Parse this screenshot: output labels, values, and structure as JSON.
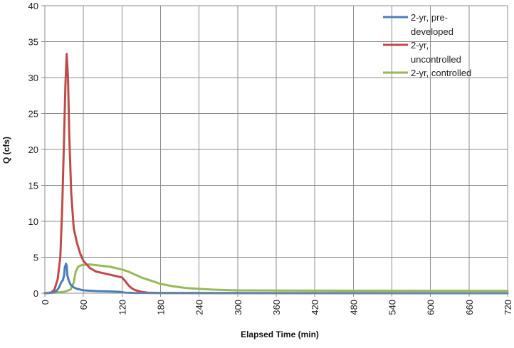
{
  "chart_data": {
    "type": "line",
    "xlabel": "Elapsed Time (min)",
    "ylabel": "Q (cfs)",
    "xlim": [
      0,
      720
    ],
    "ylim": [
      0,
      40
    ],
    "xticks": [
      "0",
      "60",
      "120",
      "180",
      "240",
      "300",
      "360",
      "420",
      "480",
      "540",
      "600",
      "660",
      "720"
    ],
    "yticks": [
      "0",
      "5",
      "10",
      "15",
      "20",
      "25",
      "30",
      "35",
      "40"
    ],
    "grid": true,
    "legend_position": "top-right",
    "series": [
      {
        "name": "2-yr, pre-developed",
        "color": "#4a7ebb",
        "points": [
          [
            0,
            0
          ],
          [
            10,
            0.05
          ],
          [
            18,
            0.3
          ],
          [
            22,
            0.8
          ],
          [
            26,
            1.6
          ],
          [
            28,
            1.8
          ],
          [
            30,
            2.5
          ],
          [
            31,
            3.6
          ],
          [
            33,
            4.1
          ],
          [
            34,
            3.8
          ],
          [
            35,
            2.5
          ],
          [
            37,
            1.8
          ],
          [
            40,
            1.2
          ],
          [
            45,
            0.8
          ],
          [
            50,
            0.6
          ],
          [
            55,
            0.5
          ],
          [
            60,
            0.4
          ],
          [
            80,
            0.3
          ],
          [
            100,
            0.25
          ],
          [
            115,
            0.2
          ],
          [
            120,
            0.15
          ],
          [
            125,
            0.08
          ],
          [
            140,
            0.04
          ],
          [
            180,
            0.02
          ],
          [
            720,
            0
          ]
        ]
      },
      {
        "name": "2-yr, uncontrolled",
        "color": "#be4b48",
        "points": [
          [
            0,
            0
          ],
          [
            10,
            0.1
          ],
          [
            15,
            0.5
          ],
          [
            20,
            2
          ],
          [
            24,
            5
          ],
          [
            27,
            12
          ],
          [
            30,
            22
          ],
          [
            32,
            29
          ],
          [
            34,
            33.3
          ],
          [
            36,
            30
          ],
          [
            38,
            22
          ],
          [
            41,
            14
          ],
          [
            45,
            9
          ],
          [
            50,
            7
          ],
          [
            55,
            5.5
          ],
          [
            60,
            4.5
          ],
          [
            65,
            4
          ],
          [
            70,
            3.5
          ],
          [
            80,
            3
          ],
          [
            90,
            2.8
          ],
          [
            100,
            2.6
          ],
          [
            110,
            2.4
          ],
          [
            120,
            2.2
          ],
          [
            125,
            1.7
          ],
          [
            130,
            1.1
          ],
          [
            135,
            0.7
          ],
          [
            140,
            0.45
          ],
          [
            150,
            0.2
          ],
          [
            160,
            0.08
          ],
          [
            180,
            0.04
          ],
          [
            240,
            0.02
          ],
          [
            720,
            0
          ]
        ]
      },
      {
        "name": "2-yr, controlled",
        "color": "#98b954",
        "points": [
          [
            0,
            0
          ],
          [
            10,
            0.05
          ],
          [
            20,
            0.1
          ],
          [
            30,
            0.2
          ],
          [
            40,
            0.5
          ],
          [
            45,
            1.5
          ],
          [
            48,
            3
          ],
          [
            52,
            3.7
          ],
          [
            57,
            3.9
          ],
          [
            65,
            4
          ],
          [
            70,
            4
          ],
          [
            80,
            3.9
          ],
          [
            90,
            3.8
          ],
          [
            100,
            3.7
          ],
          [
            110,
            3.5
          ],
          [
            120,
            3.3
          ],
          [
            130,
            3
          ],
          [
            140,
            2.6
          ],
          [
            150,
            2.2
          ],
          [
            160,
            1.9
          ],
          [
            170,
            1.6
          ],
          [
            180,
            1.3
          ],
          [
            200,
            0.95
          ],
          [
            220,
            0.72
          ],
          [
            240,
            0.6
          ],
          [
            260,
            0.5
          ],
          [
            280,
            0.45
          ],
          [
            300,
            0.4
          ],
          [
            360,
            0.38
          ],
          [
            420,
            0.36
          ],
          [
            480,
            0.35
          ],
          [
            540,
            0.35
          ],
          [
            600,
            0.34
          ],
          [
            660,
            0.34
          ],
          [
            720,
            0.33
          ]
        ]
      }
    ]
  }
}
